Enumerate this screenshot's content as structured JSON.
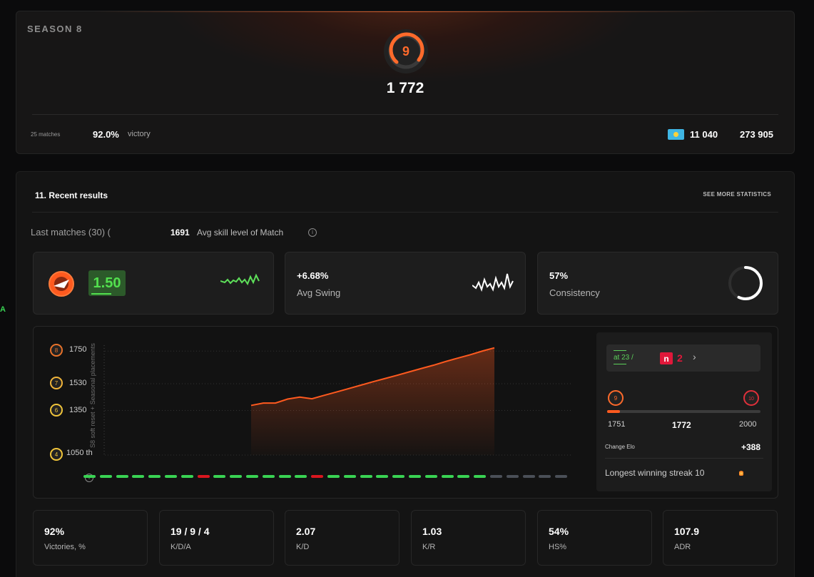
{
  "edge_letter": "A",
  "season": {
    "title": "SEASON 8",
    "level": "9",
    "elo": "1 772",
    "matches": "25 matches",
    "victory_pct": "92.0%",
    "victory_label": "victory",
    "country_rank": "11 040",
    "world_rank": "273 905"
  },
  "recent": {
    "title": "11. Recent results",
    "see_more": "SEE MORE STATISTICS",
    "last_matches": "Last matches (30) (",
    "avg_skill_value": "1691",
    "avg_skill_label": "Avg skill level of Match",
    "rating": {
      "value": "1.50",
      "icon": "rating-icon"
    },
    "avg_swing": {
      "value": "+6.68%",
      "label": "Avg Swing"
    },
    "consistency": {
      "value": "57%",
      "label": "Consistency",
      "fraction": 0.57
    }
  },
  "chart": {
    "level_labels": [
      "1750",
      "1530",
      "1350",
      "1050 th"
    ],
    "level_icons": [
      "8",
      "7",
      "6",
      "4"
    ],
    "vertical_note": "S8 soft reset + Seasonal placements"
  },
  "chart_data": {
    "type": "area",
    "title": "",
    "ylim": [
      1050,
      1780
    ],
    "y_ticks": [
      1350,
      1530,
      1750
    ],
    "values": [
      1384,
      1400,
      1400,
      1427,
      1440,
      1429,
      1452,
      1474,
      1497,
      1520,
      1543,
      1565,
      1587,
      1610,
      1633,
      1655,
      1680,
      1703,
      1725,
      1750,
      1772
    ],
    "line_color": "#ff5a1f",
    "results": [
      "W",
      "W",
      "W",
      "W",
      "W",
      "W",
      "W",
      "L",
      "W",
      "W",
      "W",
      "W",
      "W",
      "W",
      "L",
      "W",
      "W",
      "W",
      "W",
      "W",
      "W",
      "W",
      "W",
      "W",
      "W",
      "N",
      "N",
      "N",
      "N",
      "N"
    ],
    "colors": {
      "win": "#39d353",
      "loss": "#d9161f",
      "none": "#4a4f57"
    }
  },
  "side": {
    "streak_text": "at 23 /",
    "streak_badge": "n",
    "streak_count": "2",
    "chevron": "›",
    "level_from": "9",
    "level_to": "10",
    "range_min": "1751",
    "range_current": "1772",
    "range_max": "2000",
    "progress_fraction": 0.085,
    "change_label": "Change Elo",
    "change_value": "+388",
    "longest_label": "Longest winning streak 10"
  },
  "stats": [
    {
      "value": "92%",
      "label": "Victories, %"
    },
    {
      "value": "19 / 9 / 4",
      "label": "K/D/A"
    },
    {
      "value": "2.07",
      "label": "K/D"
    },
    {
      "value": "1.03",
      "label": "K/R"
    },
    {
      "value": "54%",
      "label": "HS%"
    },
    {
      "value": "107.9",
      "label": "ADR"
    }
  ]
}
